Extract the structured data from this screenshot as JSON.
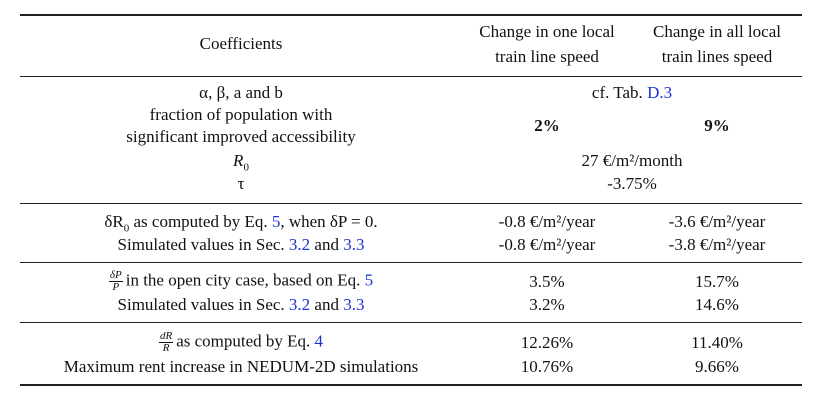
{
  "header": {
    "coefficients": "Coefficients",
    "col_one_line1": "Change in one local",
    "col_one_line2": "train line speed",
    "col_all_line1": "Change in all local",
    "col_all_line2": "train lines speed"
  },
  "section1": {
    "alpha_label": "α, β, a and b",
    "alpha_value_prefix": "cf. Tab. ",
    "alpha_value_ref": "D.3",
    "fraction_line1": "fraction of population with",
    "fraction_line2": "significant improved accessibility",
    "fraction_one": "2%",
    "fraction_all": "9%",
    "r0_label": "R",
    "r0_sub": "0",
    "r0_value": "27 €/m²/month",
    "tau_label": "τ",
    "tau_value": "-3.75%"
  },
  "section2": {
    "row1_label_a": "δR",
    "row1_label_sub": "0",
    "row1_label_b": " as computed by Eq. ",
    "row1_ref": "5",
    "row1_label_c": ", when δP = 0.",
    "row1_one": "-0.8 €/m²/year",
    "row1_all": "-3.6 €/m²/year",
    "row2_label_a": "Simulated values in Sec. ",
    "row2_ref1": "3.2",
    "row2_and": " and ",
    "row2_ref2": "3.3",
    "row2_one": "-0.8 €/m²/year",
    "row2_all": "-3.8 €/m²/year"
  },
  "section3": {
    "row1_frac_num": "δP",
    "row1_frac_den": "P",
    "row1_label": "in the open city case, based on Eq. ",
    "row1_ref": "5",
    "row1_one": "3.5%",
    "row1_all": "15.7%",
    "row2_label_a": "Simulated values in Sec. ",
    "row2_ref1": "3.2",
    "row2_and": " and ",
    "row2_ref2": "3.3",
    "row2_one": "3.2%",
    "row2_all": "14.6%"
  },
  "section4": {
    "row1_frac_num": "dR",
    "row1_frac_den": "R",
    "row1_label": "as computed by Eq. ",
    "row1_ref": "4",
    "row1_one": "12.26%",
    "row1_all": "11.40%",
    "row2_label": "Maximum rent increase in NEDUM-2D simulations",
    "row2_one": "10.76%",
    "row2_all": "9.66%"
  }
}
